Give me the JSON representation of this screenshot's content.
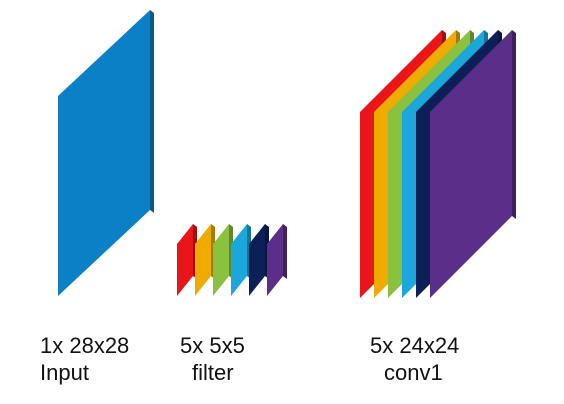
{
  "colors": {
    "input": "#0b80c6",
    "layers": [
      "#e8161b",
      "#f0ab00",
      "#8ac13e",
      "#1ba7dc",
      "#0d1f57",
      "#5b2e8a"
    ]
  },
  "blocks": [
    {
      "id": "input",
      "dims": "1x 28x28",
      "name": "Input"
    },
    {
      "id": "filter",
      "dims": "5x 5x5",
      "name": "filter"
    },
    {
      "id": "conv1",
      "dims": "5x 24x24",
      "name": "conv1"
    }
  ]
}
